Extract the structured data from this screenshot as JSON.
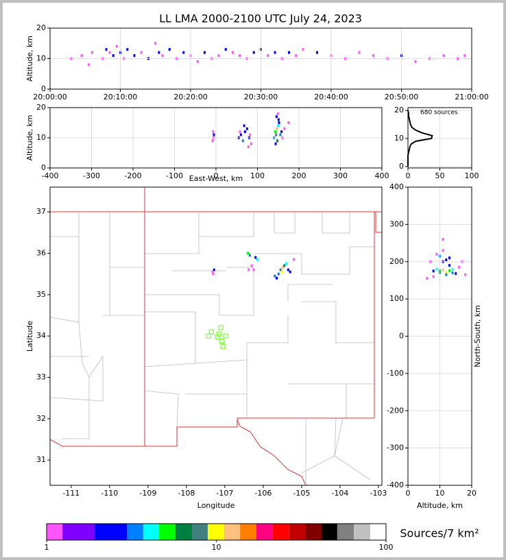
{
  "chart_data": [
    {
      "type": "scatter",
      "title": "LL LMA 2000-2100 UTC July 24, 2023",
      "ylabel": "Altitude, km",
      "xlim": [
        0,
        60
      ],
      "xticks": [
        {
          "value": 0,
          "label": "20:00:00"
        },
        {
          "value": 10,
          "label": "20:10:00"
        },
        {
          "value": 20,
          "label": "20:20:00"
        },
        {
          "value": 30,
          "label": "20:30:00"
        },
        {
          "value": 40,
          "label": "20:40:00"
        },
        {
          "value": 50,
          "label": "20:50:00"
        },
        {
          "value": 60,
          "label": "21:00:00"
        }
      ],
      "ylim": [
        0,
        20
      ],
      "yticks": [
        0,
        10,
        20
      ],
      "grid": true,
      "series": [
        {
          "x": [
            3,
            4.5,
            5.5,
            6,
            7.5,
            8,
            8.5,
            9,
            9.5,
            10,
            10.5,
            11,
            12,
            13,
            14,
            15,
            15.5,
            16,
            17,
            18,
            19,
            20,
            21,
            22,
            23,
            24,
            25,
            26,
            27,
            28,
            29,
            30,
            31,
            32,
            33,
            34,
            35,
            36,
            38,
            40,
            42,
            44,
            46,
            48,
            50,
            52,
            54,
            56,
            58,
            59
          ],
          "values": [
            10,
            11,
            8,
            12,
            10,
            13,
            12,
            11,
            14,
            12,
            10,
            13,
            11,
            12,
            10,
            15,
            12,
            11,
            13,
            10,
            12,
            11,
            9,
            12,
            10,
            11,
            13,
            12,
            11,
            10,
            12,
            13,
            11,
            12,
            10,
            12,
            11,
            13,
            12,
            11,
            10,
            12,
            11,
            10,
            11,
            9,
            10,
            11,
            10,
            11
          ],
          "density": [
            1,
            1,
            1,
            1,
            1,
            2,
            1,
            2,
            1,
            2,
            1,
            2,
            2,
            1,
            2,
            1,
            2,
            1,
            2,
            1,
            2,
            1,
            1,
            2,
            1,
            1,
            2,
            1,
            1,
            1,
            2,
            2,
            1,
            2,
            1,
            2,
            1,
            1,
            2,
            1,
            1,
            1,
            1,
            1,
            2,
            1,
            1,
            1,
            1,
            1
          ]
        }
      ]
    },
    {
      "type": "scatter",
      "xlabel": "East-West, km",
      "ylabel": "Altitude, km",
      "xlim": [
        -400,
        400
      ],
      "xticks": [
        -400,
        -300,
        -200,
        -100,
        0,
        100,
        200,
        300,
        400
      ],
      "ylim": [
        0,
        20
      ],
      "yticks": [
        0,
        10,
        20
      ],
      "grid": true,
      "series": [
        {
          "x": [
            -8,
            -6,
            -5,
            -7,
            55,
            60,
            65,
            70,
            75,
            80,
            82,
            85,
            58,
            68,
            78,
            140,
            143,
            145,
            147,
            148,
            150,
            152,
            155,
            158,
            160,
            146,
            149,
            151,
            144,
            165,
            175
          ],
          "values": [
            9,
            10,
            11,
            12,
            10,
            11,
            9,
            12,
            13,
            10,
            11,
            8,
            12,
            14,
            7,
            10,
            12,
            11,
            13,
            9,
            14,
            15,
            11,
            12,
            10,
            17,
            18,
            16,
            8,
            13,
            15
          ],
          "density": [
            1,
            1,
            2,
            1,
            2,
            2,
            3,
            2,
            2,
            2,
            1,
            1,
            1,
            2,
            1,
            3,
            5,
            8,
            12,
            6,
            4,
            2,
            3,
            2,
            1,
            2,
            1,
            2,
            2,
            1,
            1
          ]
        }
      ]
    },
    {
      "type": "line",
      "annotation": "680 sources",
      "xlim": [
        0,
        100
      ],
      "xticks": [
        0,
        50,
        100
      ],
      "ylim": [
        -0.5,
        21
      ],
      "yticks": [
        0,
        10,
        20
      ],
      "grid": true,
      "color": "#000000",
      "x": [
        0,
        0,
        0,
        0,
        0,
        1,
        2,
        3,
        5,
        12,
        37,
        38,
        22,
        12,
        6,
        4,
        3,
        2,
        1,
        1,
        0
      ],
      "values": [
        0,
        1,
        2,
        3,
        4,
        5,
        6,
        7,
        8,
        9,
        10,
        11,
        12,
        13,
        14,
        15,
        16,
        17,
        18,
        19,
        20
      ]
    },
    {
      "type": "scatter",
      "xlabel": "Longitude",
      "ylabel": "Latitude",
      "xlim": [
        -111.55,
        -102.91
      ],
      "xticks": [
        -111,
        -110,
        -109,
        -108,
        -107,
        -106,
        -105,
        -104,
        -103
      ],
      "ylim": [
        30.39,
        37.6
      ],
      "yticks": [
        31,
        32,
        33,
        34,
        35,
        36,
        37
      ],
      "grid": false,
      "series": [
        {
          "x": [
            -107.3,
            -107.28,
            -107.32,
            -106.4,
            -106.35,
            -106.3,
            -106.15,
            -106.2,
            -106.25,
            -106.38,
            -105.55,
            -105.5,
            -105.45,
            -105.6,
            -105.4,
            -105.35,
            -105.7,
            -105.3,
            -105.2,
            -105.65,
            -105.5
          ],
          "values": [
            35.5,
            35.6,
            35.55,
            36.0,
            35.95,
            35.7,
            35.85,
            35.9,
            35.6,
            35.6,
            35.6,
            35.65,
            35.7,
            35.5,
            35.75,
            35.6,
            35.45,
            35.55,
            35.85,
            35.4,
            35.55
          ],
          "density": [
            1,
            2,
            1,
            5,
            3,
            1,
            4,
            2,
            1,
            1,
            8,
            12,
            6,
            3,
            4,
            2,
            3,
            2,
            1,
            2,
            9
          ]
        },
        {
          "x": [
            -107.35,
            -107.1,
            -106.98,
            -107.2,
            -107.08,
            -107.05,
            -107.42,
            -107.15
          ],
          "values": [
            34.1,
            34.2,
            34.0,
            33.98,
            33.88,
            33.75,
            34.0,
            34.05
          ],
          "color": "#80ff40",
          "marker": "square"
        }
      ]
    },
    {
      "type": "scatter",
      "xlabel": "Altitude, km",
      "ylabel": "North-South, km",
      "xlim": [
        0,
        20
      ],
      "xticks": [
        0,
        10,
        20
      ],
      "ylim": [
        -400,
        400
      ],
      "yticks": [
        -400,
        -300,
        -200,
        -100,
        0,
        100,
        200,
        300,
        400
      ],
      "grid": true,
      "series": [
        {
          "x": [
            8,
            9,
            10,
            11,
            12,
            13,
            14,
            15,
            16,
            9,
            10,
            11,
            12,
            13,
            7,
            8,
            11,
            12,
            10,
            14,
            17,
            18,
            6,
            11,
            13
          ],
          "values": [
            175,
            180,
            170,
            178,
            172,
            176,
            180,
            168,
            185,
            220,
            215,
            200,
            205,
            190,
            200,
            160,
            230,
            165,
            175,
            170,
            200,
            165,
            155,
            260,
            210
          ],
          "density": [
            2,
            4,
            8,
            12,
            10,
            5,
            4,
            2,
            1,
            1,
            3,
            2,
            2,
            2,
            1,
            1,
            1,
            3,
            6,
            3,
            1,
            1,
            1,
            1,
            2
          ]
        }
      ]
    },
    {
      "type": "colorbar",
      "label": "Sources/7 km²",
      "log": true,
      "xlim": [
        1,
        100
      ],
      "xticks": [
        1,
        10,
        100
      ],
      "bounds": [
        1,
        1.24,
        1.92,
        2.97,
        3.71,
        4.6,
        5.75,
        7.19,
        8.9,
        11.1,
        13.8,
        17.2,
        21.5,
        26.9,
        33.4,
        41.7,
        51.6,
        64.6,
        80.7,
        100
      ],
      "colors": [
        "#ff55ff",
        "#8000ff",
        "#0000ff",
        "#0080ff",
        "#00ffff",
        "#00ff00",
        "#008040",
        "#408080",
        "#ffff00",
        "#ffc080",
        "#ff8000",
        "#ff0080",
        "#ff0000",
        "#c00000",
        "#800000",
        "#000000",
        "#808080",
        "#c0c0c0",
        "#ffffff"
      ]
    }
  ]
}
